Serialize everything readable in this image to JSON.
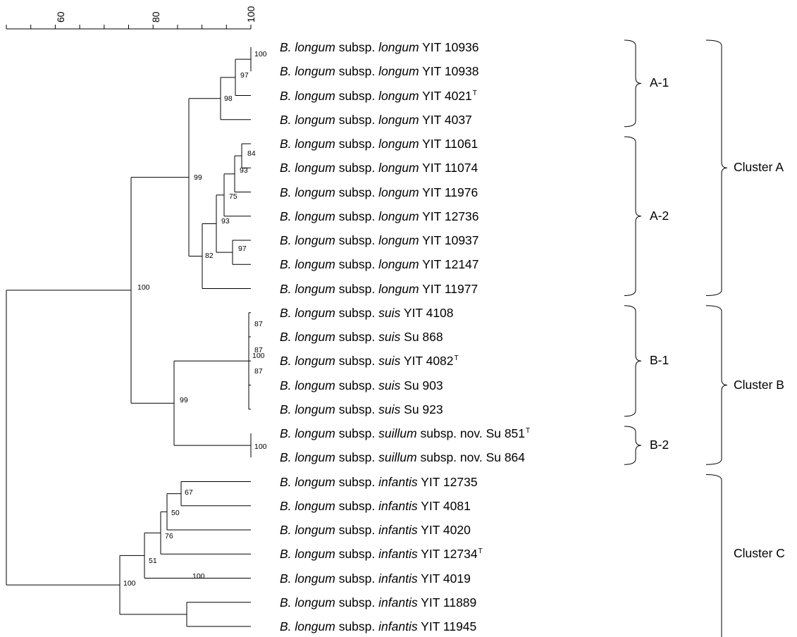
{
  "scale": {
    "ticks": [
      "60",
      "80",
      "100"
    ]
  },
  "strains": [
    {
      "genus": "B.",
      "species": "longum",
      "subsp_word": "subsp.",
      "subsp": "longum",
      "extra": "",
      "strain": "YIT 10936",
      "type_mark": ""
    },
    {
      "genus": "B.",
      "species": "longum",
      "subsp_word": "subsp.",
      "subsp": "longum",
      "extra": "",
      "strain": "YIT 10938",
      "type_mark": ""
    },
    {
      "genus": "B.",
      "species": "longum",
      "subsp_word": "subsp.",
      "subsp": "longum",
      "extra": "",
      "strain": "YIT 4021",
      "type_mark": "T"
    },
    {
      "genus": "B.",
      "species": "longum",
      "subsp_word": "subsp.",
      "subsp": "longum",
      "extra": "",
      "strain": "YIT 4037",
      "type_mark": ""
    },
    {
      "genus": "B.",
      "species": "longum",
      "subsp_word": "subsp.",
      "subsp": "longum",
      "extra": "",
      "strain": "YIT 11061",
      "type_mark": ""
    },
    {
      "genus": "B.",
      "species": "longum",
      "subsp_word": "subsp.",
      "subsp": "longum",
      "extra": "",
      "strain": "YIT 11074",
      "type_mark": ""
    },
    {
      "genus": "B.",
      "species": "longum",
      "subsp_word": "subsp.",
      "subsp": "longum",
      "extra": "",
      "strain": "YIT 11976",
      "type_mark": ""
    },
    {
      "genus": "B.",
      "species": "longum",
      "subsp_word": "subsp.",
      "subsp": "longum",
      "extra": "",
      "strain": "YIT 12736",
      "type_mark": ""
    },
    {
      "genus": "B.",
      "species": "longum",
      "subsp_word": "subsp.",
      "subsp": "longum",
      "extra": "",
      "strain": "YIT 10937",
      "type_mark": ""
    },
    {
      "genus": "B.",
      "species": "longum",
      "subsp_word": "subsp.",
      "subsp": "longum",
      "extra": "",
      "strain": "YIT 12147",
      "type_mark": ""
    },
    {
      "genus": "B.",
      "species": "longum",
      "subsp_word": "subsp.",
      "subsp": "longum",
      "extra": "",
      "strain": "YIT 11977",
      "type_mark": ""
    },
    {
      "genus": "B.",
      "species": "longum",
      "subsp_word": "subsp.",
      "subsp": "suis",
      "extra": "",
      "strain": "YIT 4108",
      "type_mark": ""
    },
    {
      "genus": "B.",
      "species": "longum",
      "subsp_word": "subsp.",
      "subsp": "suis",
      "extra": "",
      "strain": "Su 868",
      "type_mark": ""
    },
    {
      "genus": "B.",
      "species": "longum",
      "subsp_word": "subsp.",
      "subsp": "suis",
      "extra": "",
      "strain": "YIT 4082",
      "type_mark": "T"
    },
    {
      "genus": "B.",
      "species": "longum",
      "subsp_word": "subsp.",
      "subsp": "suis",
      "extra": "",
      "strain": "Su 903",
      "type_mark": ""
    },
    {
      "genus": "B.",
      "species": "longum",
      "subsp_word": "subsp.",
      "subsp": "suis",
      "extra": "",
      "strain": "Su 923",
      "type_mark": ""
    },
    {
      "genus": "B.",
      "species": "longum",
      "subsp_word": "subsp.",
      "subsp": "suillum",
      "extra": "subsp. nov.",
      "strain": "Su 851",
      "type_mark": "T"
    },
    {
      "genus": "B.",
      "species": "longum",
      "subsp_word": "subsp.",
      "subsp": "suillum",
      "extra": "subsp. nov.",
      "strain": "Su 864",
      "type_mark": ""
    },
    {
      "genus": "B.",
      "species": "longum",
      "subsp_word": "subsp.",
      "subsp": "infantis",
      "extra": "",
      "strain": "YIT 12735",
      "type_mark": ""
    },
    {
      "genus": "B.",
      "species": "longum",
      "subsp_word": "subsp.",
      "subsp": "infantis",
      "extra": "",
      "strain": "YIT 4081",
      "type_mark": ""
    },
    {
      "genus": "B.",
      "species": "longum",
      "subsp_word": "subsp.",
      "subsp": "infantis",
      "extra": "",
      "strain": "YIT 4020",
      "type_mark": ""
    },
    {
      "genus": "B.",
      "species": "longum",
      "subsp_word": "subsp.",
      "subsp": "infantis",
      "extra": "",
      "strain": "YIT 12734",
      "type_mark": "T"
    },
    {
      "genus": "B.",
      "species": "longum",
      "subsp_word": "subsp.",
      "subsp": "infantis",
      "extra": "",
      "strain": "YIT 4019",
      "type_mark": ""
    },
    {
      "genus": "B.",
      "species": "longum",
      "subsp_word": "subsp.",
      "subsp": "infantis",
      "extra": "",
      "strain": "YIT 11889",
      "type_mark": ""
    },
    {
      "genus": "B.",
      "species": "longum",
      "subsp_word": "subsp.",
      "subsp": "infantis",
      "extra": "",
      "strain": "YIT 11945",
      "type_mark": ""
    }
  ],
  "node_support": [
    "100",
    "97",
    "98",
    "84",
    "93",
    "75",
    "93",
    "97",
    "82",
    "99",
    "87",
    "100",
    "87",
    "87",
    "99",
    "100",
    "100",
    "67",
    "50",
    "76",
    "51",
    "100",
    "100"
  ],
  "subclusters": [
    {
      "label": "A-1",
      "first_row": 0,
      "last_row": 3
    },
    {
      "label": "A-2",
      "first_row": 4,
      "last_row": 10
    },
    {
      "label": "B-1",
      "first_row": 11,
      "last_row": 15
    },
    {
      "label": "B-2",
      "first_row": 16,
      "last_row": 17
    }
  ],
  "clusters": [
    {
      "label": "Cluster A",
      "first_row": 0,
      "last_row": 10
    },
    {
      "label": "Cluster B",
      "first_row": 11,
      "last_row": 17
    },
    {
      "label": "Cluster C",
      "first_row": 18,
      "last_row": 24
    }
  ]
}
